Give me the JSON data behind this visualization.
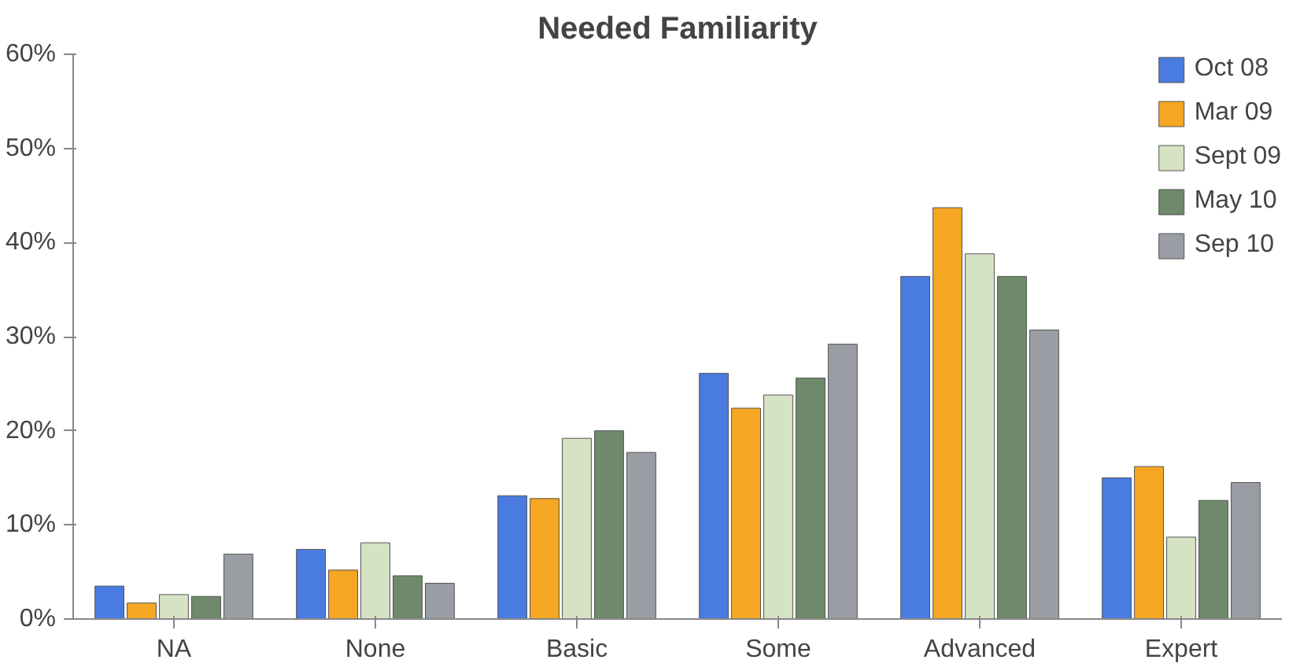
{
  "chart_data": {
    "type": "bar",
    "title": "Needed Familiarity",
    "categories": [
      "NA",
      "None",
      "Basic",
      "Some",
      "Advanced",
      "Expert"
    ],
    "series": [
      {
        "name": "Oct 08",
        "color": "#4a7be0",
        "values": [
          3.5,
          7.4,
          13.1,
          26.1,
          36.4,
          15.0
        ]
      },
      {
        "name": "Mar 09",
        "color": "#f5a623",
        "values": [
          1.7,
          5.2,
          12.8,
          22.4,
          43.7,
          16.2
        ]
      },
      {
        "name": "Sept 09",
        "color": "#d6e2c4",
        "values": [
          2.6,
          8.1,
          19.2,
          23.8,
          38.8,
          8.7
        ]
      },
      {
        "name": "May 10",
        "color": "#6e8a6a",
        "values": [
          2.4,
          4.6,
          20.0,
          25.6,
          36.4,
          12.6
        ]
      },
      {
        "name": "Sep 10",
        "color": "#9a9ea4",
        "values": [
          6.9,
          3.8,
          17.7,
          29.2,
          30.7,
          14.5
        ]
      }
    ],
    "ylim": [
      0,
      60
    ],
    "yticks": [
      {
        "value": 0,
        "label": "0%"
      },
      {
        "value": 10,
        "label": "10%"
      },
      {
        "value": 20,
        "label": "20%"
      },
      {
        "value": 30,
        "label": "30%"
      },
      {
        "value": 40,
        "label": "40%"
      },
      {
        "value": 50,
        "label": "50%"
      },
      {
        "value": 60,
        "label": "60%"
      }
    ],
    "grid": false,
    "legend": "top right"
  }
}
